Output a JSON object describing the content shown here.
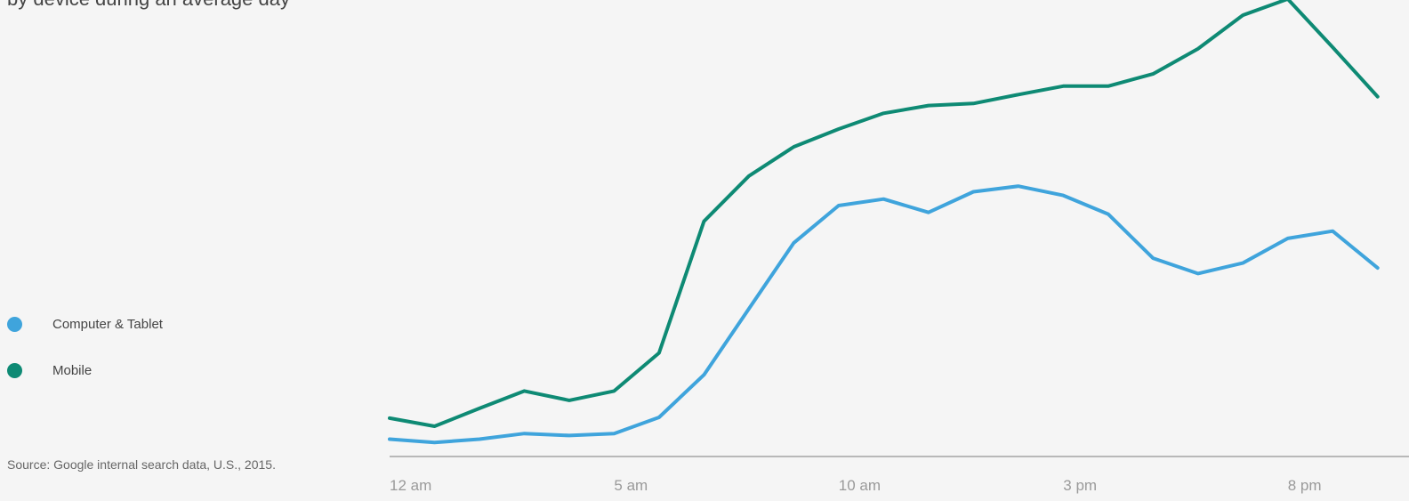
{
  "subtitle": "by device during an average day",
  "source": "Source: Google internal search data, U.S., 2015.",
  "colors": {
    "computer": "#3fa4dc",
    "mobile": "#0e8a74",
    "axis": "#b8b8b8",
    "background": "#f5f5f5"
  },
  "chart_data": {
    "type": "line",
    "x": [
      0,
      1,
      2,
      3,
      4,
      5,
      6,
      7,
      8,
      9,
      10,
      11,
      12,
      13,
      14,
      15,
      16,
      17,
      18,
      19,
      20,
      21,
      22
    ],
    "tick_labels": [
      "12 am",
      "5 am",
      "10 am",
      "3 pm",
      "8 pm"
    ],
    "tick_values": [
      0,
      5,
      10,
      15,
      20
    ],
    "xlim": [
      0,
      22.7
    ],
    "ylim": [
      0,
      100
    ],
    "grid": false,
    "legend_position": "left",
    "series": [
      {
        "name": "Computer & Tablet",
        "color_key": "computer",
        "values": [
          3.4,
          2.6,
          3.4,
          4.8,
          4.3,
          4.8,
          8.8,
          19.3,
          35.6,
          51.9,
          61.1,
          62.7,
          59.4,
          64.5,
          65.9,
          63.6,
          59.0,
          48.1,
          44.3,
          46.9,
          53.0,
          54.8,
          45.7
        ]
      },
      {
        "name": "Mobile",
        "color_key": "mobile",
        "values": [
          8.6,
          6.6,
          11.0,
          15.3,
          13.0,
          15.3,
          24.7,
          57.2,
          68.4,
          75.6,
          80.0,
          83.9,
          85.8,
          86.3,
          88.5,
          90.6,
          90.6,
          93.6,
          99.8,
          108.1,
          112.1,
          100.2,
          88.0
        ]
      }
    ]
  }
}
